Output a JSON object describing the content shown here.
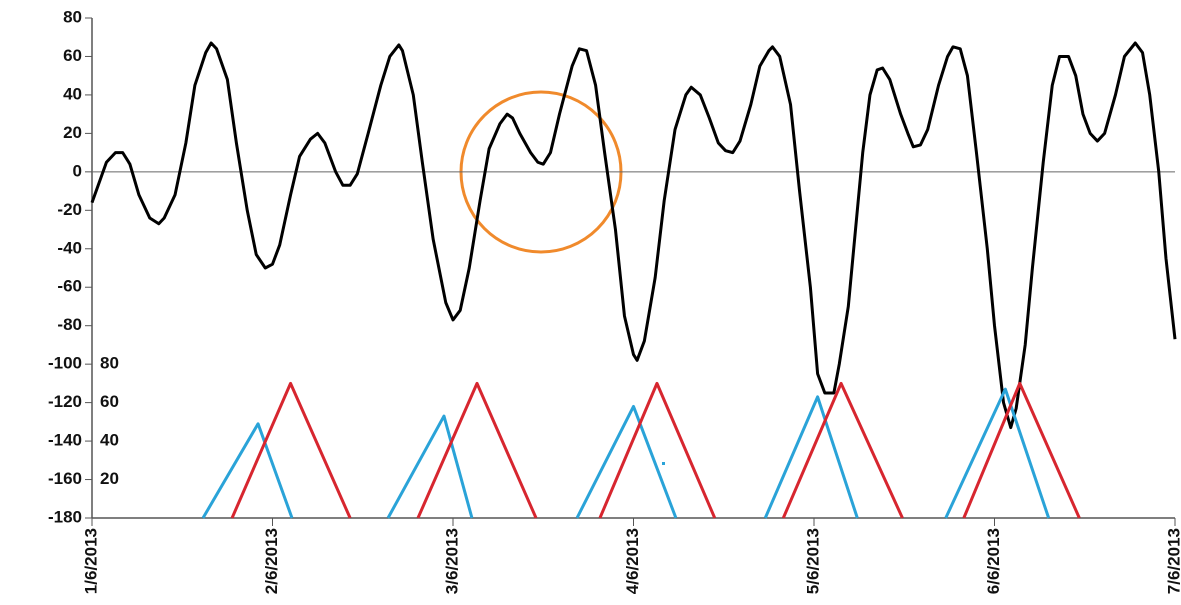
{
  "chart_data": {
    "type": "line",
    "xlim": [
      0,
      6
    ],
    "xticks": [
      {
        "value": 0,
        "label": "1/6/2013"
      },
      {
        "value": 1,
        "label": "2/6/2013"
      },
      {
        "value": 2,
        "label": "3/6/2013"
      },
      {
        "value": 3,
        "label": "4/6/2013"
      },
      {
        "value": 4,
        "label": "5/6/2013"
      },
      {
        "value": 5,
        "label": "6/6/2013"
      },
      {
        "value": 6,
        "label": "7/6/2013"
      }
    ],
    "ylim": [
      -180,
      80
    ],
    "yticks": [
      -180,
      -160,
      -140,
      -120,
      -100,
      -80,
      -60,
      -40,
      -20,
      0,
      20,
      40,
      60,
      80
    ],
    "y2lim": [
      0,
      260
    ],
    "y2ticks": [
      20,
      40,
      60,
      80
    ],
    "series": [
      {
        "color": "#000000",
        "x": [
          0,
          0.08,
          0.13,
          0.17,
          0.21,
          0.26,
          0.32,
          0.37,
          0.4,
          0.46,
          0.52,
          0.57,
          0.63,
          0.66,
          0.69,
          0.75,
          0.8,
          0.86,
          0.91,
          0.96,
          1.0,
          1.04,
          1.1,
          1.15,
          1.21,
          1.25,
          1.29,
          1.35,
          1.39,
          1.43,
          1.47,
          1.53,
          1.6,
          1.65,
          1.7,
          1.72,
          1.78,
          1.83,
          1.89,
          1.96,
          2.0,
          2.04,
          2.09,
          2.15,
          2.2,
          2.26,
          2.3,
          2.33,
          2.37,
          2.43,
          2.47,
          2.5,
          2.54,
          2.59,
          2.66,
          2.7,
          2.74,
          2.79,
          2.84,
          2.9,
          2.95,
          3.0,
          3.02,
          3.06,
          3.12,
          3.17,
          3.23,
          3.29,
          3.32,
          3.37,
          3.42,
          3.47,
          3.51,
          3.55,
          3.59,
          3.65,
          3.7,
          3.75,
          3.77,
          3.81,
          3.87,
          3.92,
          3.98,
          4.02,
          4.06,
          4.11,
          4.14,
          4.19,
          4.23,
          4.27,
          4.31,
          4.35,
          4.38,
          4.42,
          4.48,
          4.52,
          4.55,
          4.59,
          4.63,
          4.69,
          4.74,
          4.77,
          4.81,
          4.85,
          4.9,
          4.96,
          5.0,
          5.05,
          5.09,
          5.12,
          5.17,
          5.21,
          5.27,
          5.32,
          5.36,
          5.41,
          5.45,
          5.49,
          5.53,
          5.57,
          5.61,
          5.67,
          5.72,
          5.78,
          5.82,
          5.86,
          5.91,
          5.95,
          6.0
        ],
        "values": [
          -16,
          5,
          10,
          10,
          4,
          -12,
          -24,
          -27,
          -24,
          -12,
          15,
          45,
          62,
          67,
          64,
          48,
          15,
          -20,
          -43,
          -50,
          -48,
          -38,
          -12,
          8,
          17,
          20,
          15,
          0,
          -7,
          -7,
          -1,
          20,
          45,
          60,
          66,
          63,
          40,
          5,
          -35,
          -68,
          -77,
          -72,
          -50,
          -15,
          12,
          25,
          30,
          28,
          20,
          10,
          5,
          4,
          10,
          30,
          55,
          64,
          63,
          45,
          10,
          -30,
          -75,
          -95,
          -98,
          -88,
          -55,
          -15,
          22,
          40,
          44,
          40,
          28,
          15,
          11,
          10,
          16,
          35,
          55,
          63,
          65,
          60,
          35,
          -10,
          -60,
          -105,
          -115,
          -115,
          -100,
          -70,
          -30,
          10,
          40,
          53,
          54,
          48,
          30,
          20,
          13,
          14,
          22,
          45,
          60,
          65,
          64,
          50,
          10,
          -40,
          -80,
          -120,
          -133,
          -123,
          -90,
          -50,
          5,
          45,
          60,
          60,
          50,
          30,
          20,
          16,
          20,
          40,
          60,
          67,
          62,
          40,
          0,
          -45,
          -87
        ]
      },
      {
        "color": "#2aa3d8",
        "axis": "y2",
        "x": [
          0.615,
          0.92,
          1.108,
          null,
          1.64,
          1.95,
          2.105,
          null,
          2.687,
          3.0,
          3.235,
          null,
          3.73,
          4.02,
          4.24,
          null,
          4.73,
          5.06,
          5.3
        ],
        "values": [
          0,
          49,
          0,
          null,
          0,
          53,
          0,
          null,
          0,
          58,
          0,
          null,
          0,
          63,
          0,
          null,
          0,
          67,
          0
        ]
      },
      {
        "color": "#d7262f",
        "axis": "y2",
        "x": [
          0.776,
          1.1,
          1.43,
          null,
          1.806,
          2.133,
          2.46,
          null,
          2.814,
          3.13,
          3.45,
          null,
          3.83,
          4.15,
          4.49,
          null,
          4.83,
          5.14,
          5.47
        ],
        "values": [
          0,
          70,
          0,
          null,
          0,
          70,
          0,
          null,
          0,
          70,
          0,
          null,
          0,
          70,
          0,
          null,
          0,
          70,
          0
        ]
      }
    ]
  }
}
